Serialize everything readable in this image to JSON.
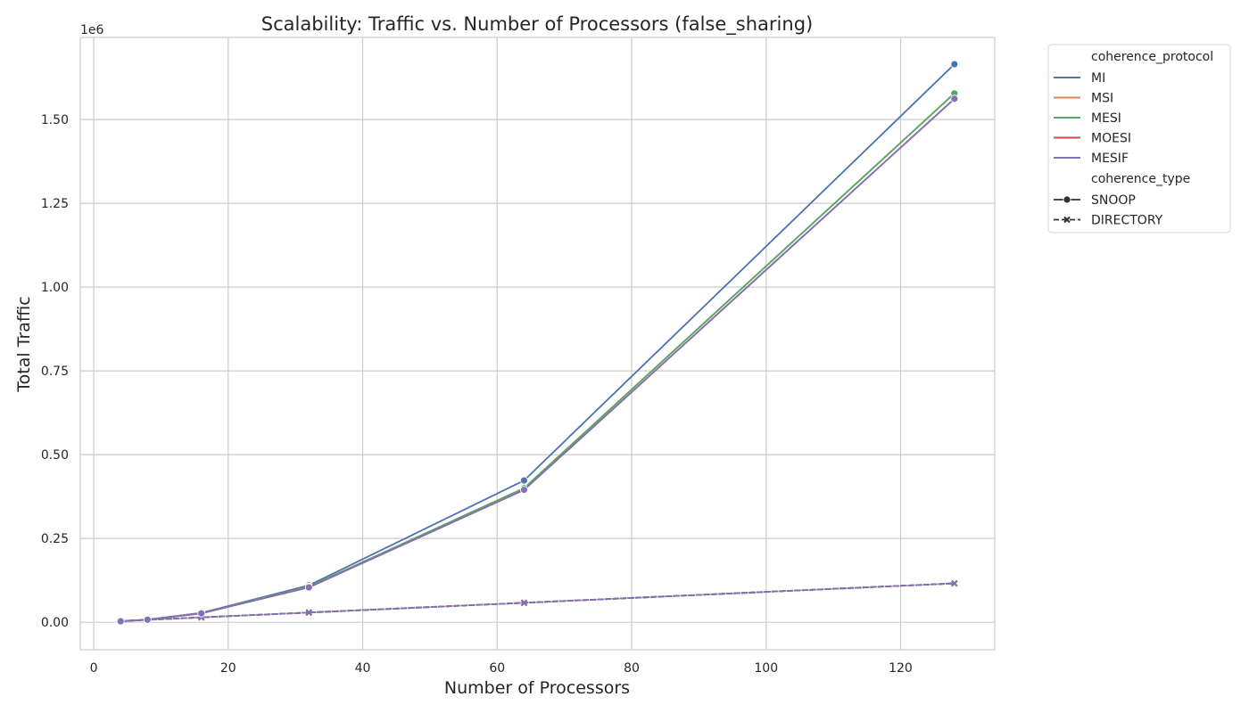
{
  "chart_data": {
    "type": "line",
    "title": "Scalability: Traffic vs. Number of Processors (false_sharing)",
    "xlabel": "Number of Processors",
    "ylabel": "Total Traffic",
    "y_offset_label": "1e6",
    "xlim": [
      -2,
      134
    ],
    "ylim": [
      -82000,
      1745000
    ],
    "xticks": [
      0,
      20,
      40,
      60,
      80,
      100,
      120
    ],
    "xtick_labels": [
      "0",
      "20",
      "40",
      "60",
      "80",
      "100",
      "120"
    ],
    "yticks": [
      0,
      250000,
      500000,
      750000,
      1000000,
      1250000,
      1500000
    ],
    "ytick_labels": [
      "0.00",
      "0.25",
      "0.50",
      "0.75",
      "1.00",
      "1.25",
      "1.50"
    ],
    "grid": true,
    "legend_position": "outside-top-right",
    "legend": {
      "hue_title": "coherence_protocol",
      "style_title": "coherence_type",
      "protocols": [
        {
          "name": "MI",
          "color": "#4c72b0"
        },
        {
          "name": "MSI",
          "color": "#dd8452"
        },
        {
          "name": "MESI",
          "color": "#55a868"
        },
        {
          "name": "MOESI",
          "color": "#c44e52"
        },
        {
          "name": "MESIF",
          "color": "#8172b3"
        }
      ],
      "types": [
        {
          "name": "SNOOP",
          "dash": "solid",
          "marker": "circle"
        },
        {
          "name": "DIRECTORY",
          "dash": "dashed",
          "marker": "x"
        }
      ]
    },
    "series": [
      {
        "protocol": "MI",
        "type": "SNOOP",
        "color": "#4c72b0",
        "x": [
          4,
          8,
          16,
          32,
          64,
          128
        ],
        "y": [
          3000,
          8000,
          28000,
          110000,
          423000,
          1665000
        ]
      },
      {
        "protocol": "MSI",
        "type": "SNOOP",
        "color": "#dd8452",
        "x": [
          4,
          8,
          16,
          32,
          64,
          128
        ],
        "y": [
          2800,
          7700,
          27000,
          106000,
          400000,
          1578000
        ]
      },
      {
        "protocol": "MESI",
        "type": "SNOOP",
        "color": "#55a868",
        "x": [
          4,
          8,
          16,
          32,
          64,
          128
        ],
        "y": [
          2800,
          7700,
          27000,
          106000,
          400000,
          1578000
        ]
      },
      {
        "protocol": "MOESI",
        "type": "SNOOP",
        "color": "#c44e52",
        "x": [
          4,
          8,
          16,
          32,
          64,
          128
        ],
        "y": [
          2700,
          7500,
          26500,
          104000,
          395000,
          1562000
        ]
      },
      {
        "protocol": "MESIF",
        "type": "SNOOP",
        "color": "#8172b3",
        "x": [
          4,
          8,
          16,
          32,
          64,
          128
        ],
        "y": [
          2700,
          7500,
          26500,
          104000,
          395000,
          1562000
        ]
      },
      {
        "protocol": "MI",
        "type": "DIRECTORY",
        "color": "#4c72b0",
        "x": [
          4,
          8,
          16,
          32,
          64,
          128
        ],
        "y": [
          3500,
          7200,
          14500,
          29000,
          58000,
          116000
        ]
      },
      {
        "protocol": "MSI",
        "type": "DIRECTORY",
        "color": "#dd8452",
        "x": [
          4,
          8,
          16,
          32,
          64,
          128
        ],
        "y": [
          3500,
          7200,
          14500,
          29000,
          58000,
          116000
        ]
      },
      {
        "protocol": "MESI",
        "type": "DIRECTORY",
        "color": "#55a868",
        "x": [
          4,
          8,
          16,
          32,
          64,
          128
        ],
        "y": [
          3500,
          7200,
          14500,
          29000,
          58000,
          116000
        ]
      },
      {
        "protocol": "MOESI",
        "type": "DIRECTORY",
        "color": "#c44e52",
        "x": [
          4,
          8,
          16,
          32,
          64,
          128
        ],
        "y": [
          3500,
          7200,
          14500,
          29000,
          58000,
          116000
        ]
      },
      {
        "protocol": "MESIF",
        "type": "DIRECTORY",
        "color": "#8172b3",
        "x": [
          4,
          8,
          16,
          32,
          64,
          128
        ],
        "y": [
          3500,
          7200,
          14500,
          29000,
          58000,
          116000
        ]
      }
    ]
  }
}
